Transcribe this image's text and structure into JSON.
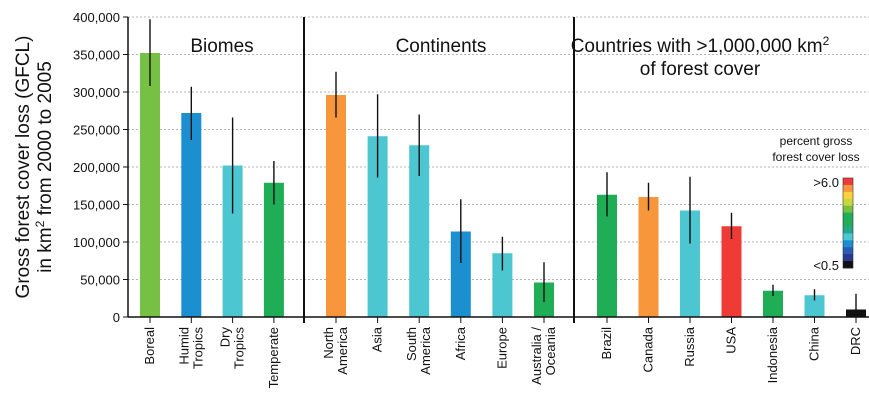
{
  "chart_data": {
    "type": "bar",
    "ylabel_line1": "Gross forest cover loss (GFCL)",
    "ylabel_line2_pre": "in km",
    "ylabel_line2_sup": "2",
    "ylabel_line2_post": " from 2000 to 2005",
    "ylim": [
      0,
      400000
    ],
    "yticks": [
      0,
      50000,
      100000,
      150000,
      200000,
      250000,
      300000,
      350000,
      400000
    ],
    "ytick_labels": [
      "0",
      "50,000",
      "100,000",
      "150,000",
      "200,000",
      "250,000",
      "300,000",
      "350,000",
      "400,000"
    ],
    "grid": true,
    "panels": [
      {
        "title_lines": [
          "Biomes"
        ],
        "bars": [
          {
            "category": "Boreal",
            "value": 352000,
            "err_low": 308000,
            "err_high": 397000,
            "color": "#76c043"
          },
          {
            "category": "Humid Tropics",
            "value": 272000,
            "err_low": 236000,
            "err_high": 307000,
            "color": "#1b8fd0"
          },
          {
            "category": "Dry Tropics",
            "value": 202000,
            "err_low": 138000,
            "err_high": 266000,
            "color": "#4cc6d0"
          },
          {
            "category": "Temperate",
            "value": 179000,
            "err_low": 150000,
            "err_high": 208000,
            "color": "#1fad55"
          }
        ]
      },
      {
        "title_lines": [
          "Continents"
        ],
        "bars": [
          {
            "category": "North America",
            "value": 296000,
            "err_low": 266000,
            "err_high": 327000,
            "color": "#f7963a"
          },
          {
            "category": "Asia",
            "value": 241000,
            "err_low": 186000,
            "err_high": 297000,
            "color": "#4cc6d0"
          },
          {
            "category": "South America",
            "value": 229000,
            "err_low": 188000,
            "err_high": 270000,
            "color": "#4cc6d0"
          },
          {
            "category": "Africa",
            "value": 114000,
            "err_low": 72000,
            "err_high": 157000,
            "color": "#1b8fd0"
          },
          {
            "category": "Europe",
            "value": 85000,
            "err_low": 62000,
            "err_high": 107000,
            "color": "#4cc6d0"
          },
          {
            "category": "Australia / Oceania",
            "value": 46000,
            "err_low": 20000,
            "err_high": 73000,
            "color": "#1fad55"
          }
        ]
      },
      {
        "title_lines": [
          "Countries with >1,000,000 km",
          "of forest cover"
        ],
        "title_sup": "2",
        "bars": [
          {
            "category": "Brazil",
            "value": 163000,
            "err_low": 134000,
            "err_high": 193000,
            "color": "#1fad55"
          },
          {
            "category": "Canada",
            "value": 160000,
            "err_low": 142000,
            "err_high": 179000,
            "color": "#f7963a"
          },
          {
            "category": "Russia",
            "value": 142000,
            "err_low": 98000,
            "err_high": 187000,
            "color": "#4cc6d0"
          },
          {
            "category": "USA",
            "value": 121000,
            "err_low": 104000,
            "err_high": 139000,
            "color": "#ef3b36"
          },
          {
            "category": "Indonesia",
            "value": 35000,
            "err_low": 28000,
            "err_high": 43000,
            "color": "#1fad55"
          },
          {
            "category": "China",
            "value": 29000,
            "err_low": 22000,
            "err_high": 37000,
            "color": "#4cc6d0"
          },
          {
            "category": "DRC",
            "value": 10000,
            "err_low": 0,
            "err_high": 31000,
            "color": "#111111"
          }
        ]
      }
    ],
    "legend": {
      "title_lines": [
        "percent gross",
        "forest cover loss"
      ],
      "top_label": ">6.0",
      "bottom_label": "<0.5",
      "colors_top_to_bottom": [
        "#ef3b36",
        "#f7963a",
        "#fdd23a",
        "#c6d93b",
        "#76c043",
        "#1fad55",
        "#1fad55",
        "#1fa98a",
        "#4cc6d0",
        "#1b8fd0",
        "#2a5db0",
        "#2b3990",
        "#111111"
      ]
    }
  }
}
